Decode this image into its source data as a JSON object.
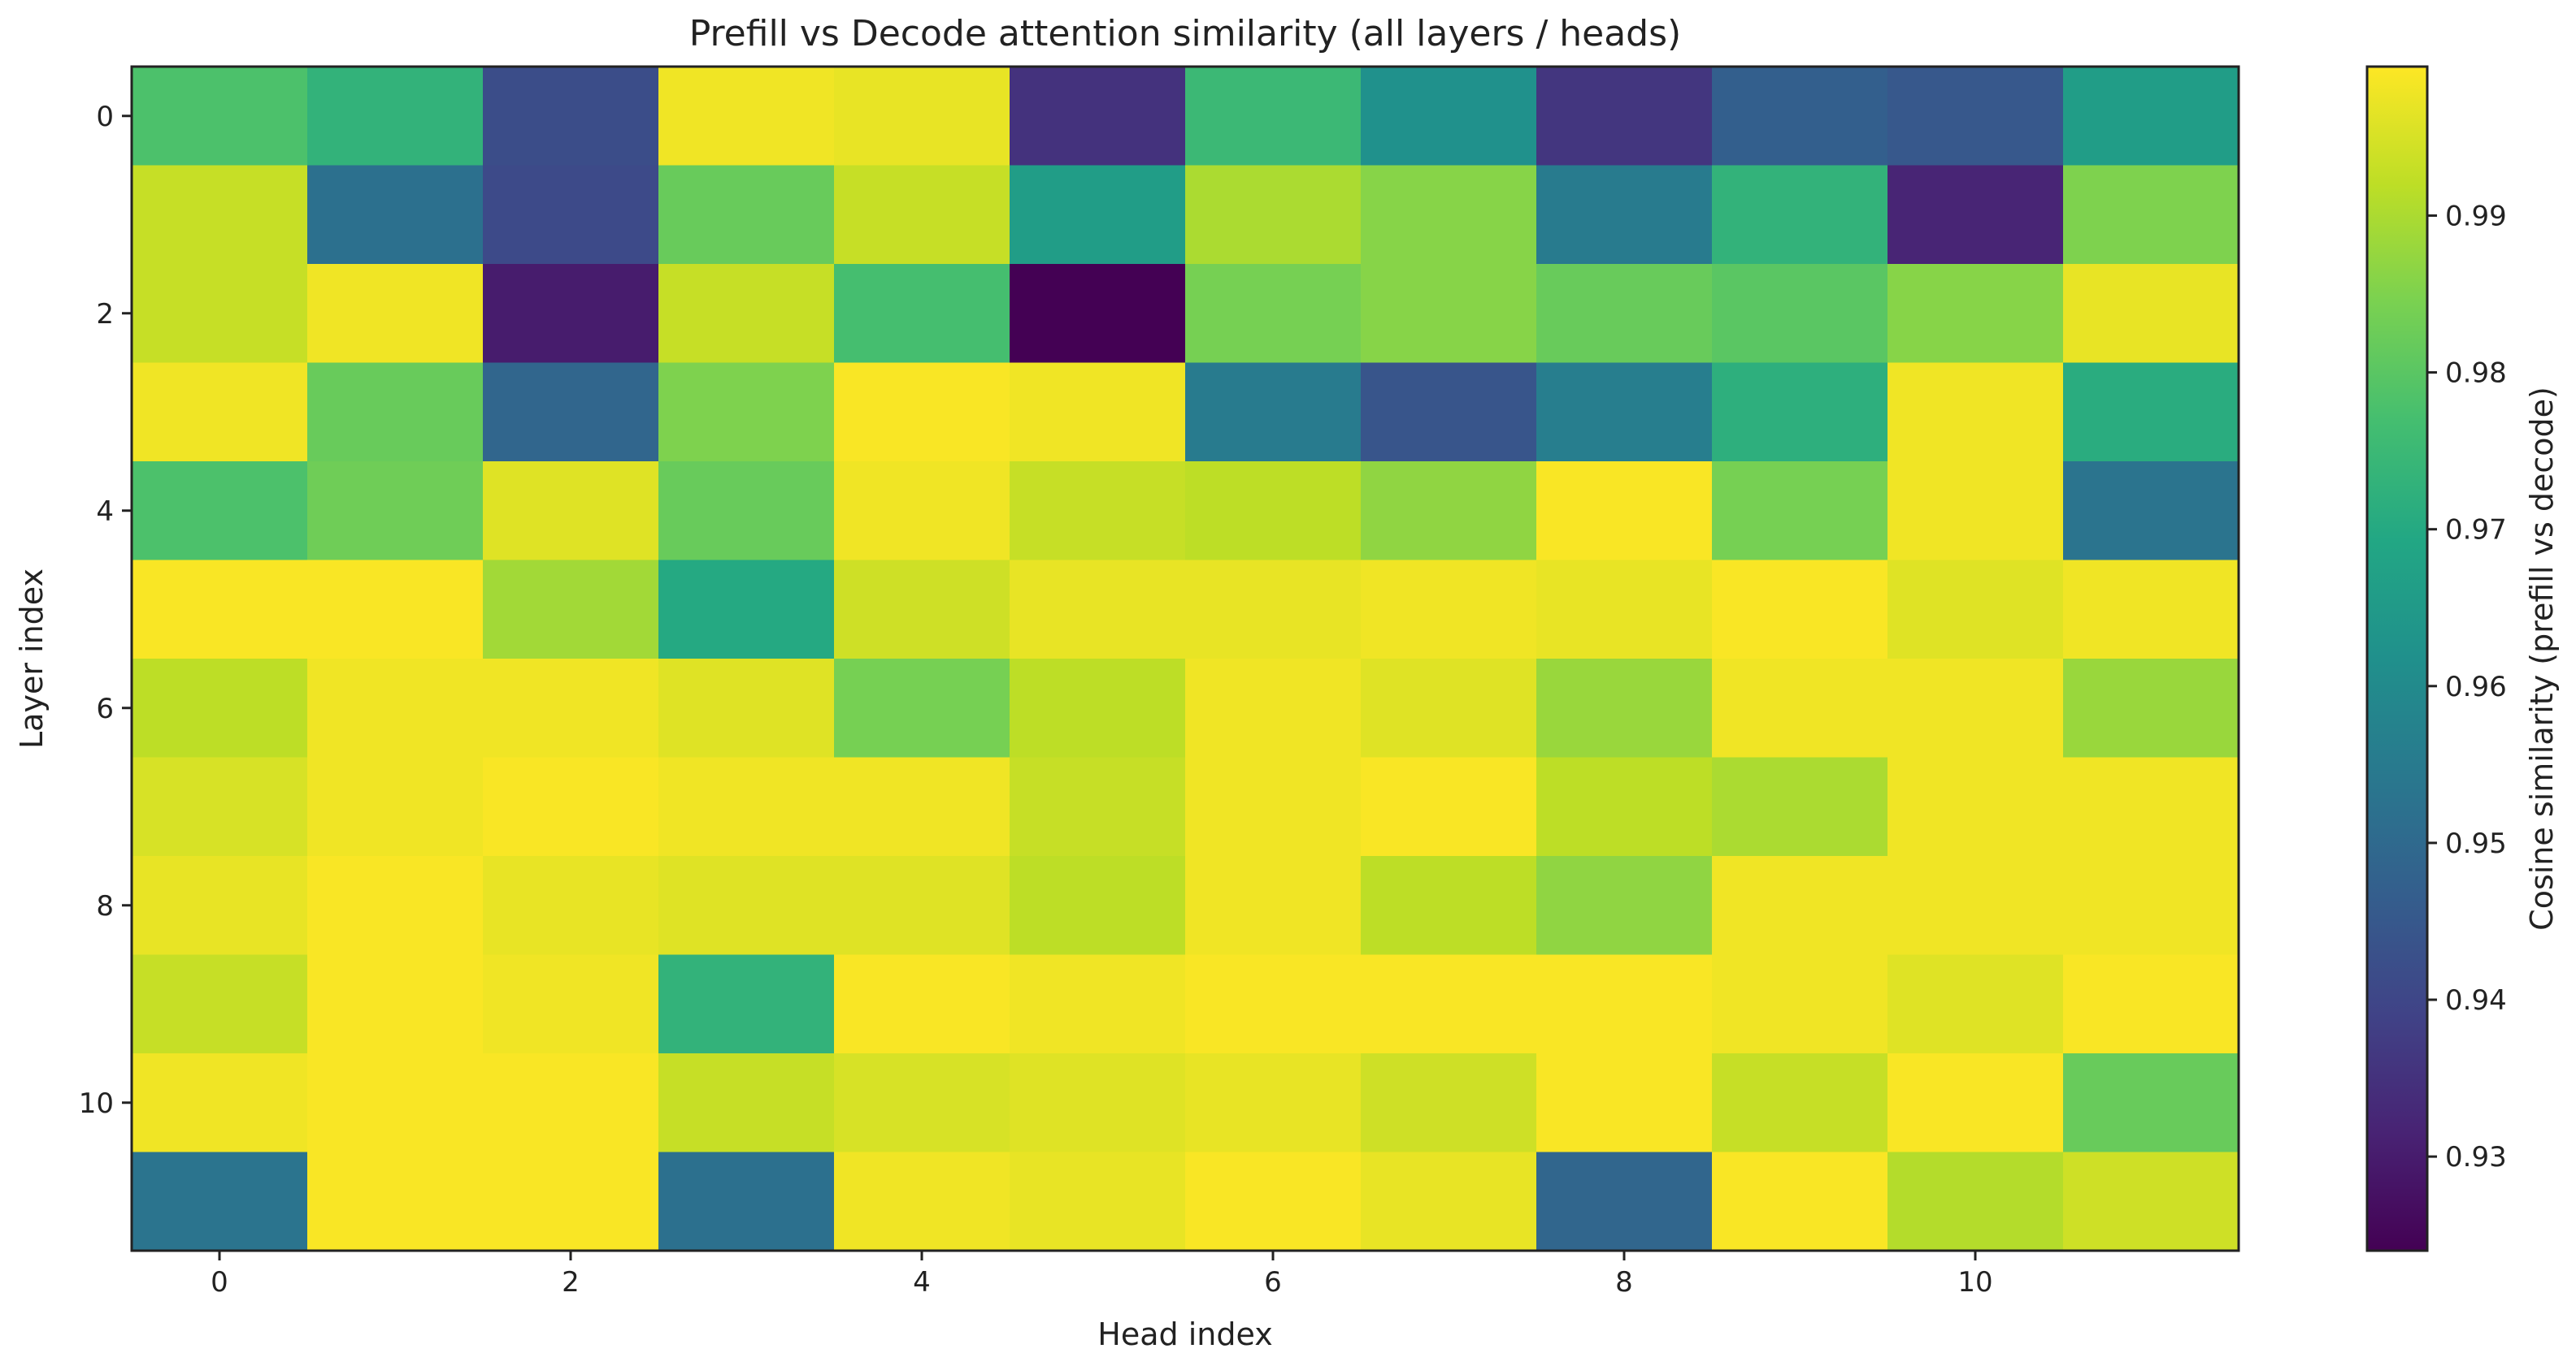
{
  "chart_data": {
    "type": "heatmap",
    "title": "Prefill vs Decode attention similarity (all layers / heads)",
    "xlabel": "Head index",
    "ylabel": "Layer index",
    "colorbar_label": "Cosine similarity (prefill vs decode)",
    "x_categories": [
      0,
      1,
      2,
      3,
      4,
      5,
      6,
      7,
      8,
      9,
      10,
      11
    ],
    "y_categories": [
      0,
      1,
      2,
      3,
      4,
      5,
      6,
      7,
      8,
      9,
      10,
      11
    ],
    "x_tick_labels": [
      "0",
      "2",
      "4",
      "6",
      "8",
      "10"
    ],
    "x_tick_values": [
      0,
      2,
      4,
      6,
      8,
      10
    ],
    "y_tick_labels": [
      "0",
      "2",
      "4",
      "6",
      "8",
      "10"
    ],
    "y_tick_values": [
      0,
      2,
      4,
      6,
      8,
      10
    ],
    "colorbar_range": [
      0.924,
      0.9995
    ],
    "colorbar_ticks": [
      0.93,
      0.94,
      0.95,
      0.96,
      0.97,
      0.98,
      0.99
    ],
    "colorbar_tick_labels": [
      "0.93",
      "0.94",
      "0.95",
      "0.96",
      "0.97",
      "0.98",
      "0.99"
    ],
    "colormap": "viridis",
    "values": [
      [
        0.978,
        0.973,
        0.942,
        0.998,
        0.997,
        0.935,
        0.975,
        0.962,
        0.936,
        0.947,
        0.945,
        0.966
      ],
      [
        0.993,
        0.952,
        0.941,
        0.982,
        0.993,
        0.966,
        0.99,
        0.986,
        0.955,
        0.973,
        0.932,
        0.985
      ],
      [
        0.993,
        0.998,
        0.93,
        0.993,
        0.977,
        0.924,
        0.984,
        0.986,
        0.982,
        0.98,
        0.986,
        0.997
      ],
      [
        0.998,
        0.982,
        0.949,
        0.985,
        0.999,
        0.998,
        0.955,
        0.944,
        0.956,
        0.972,
        0.998,
        0.971
      ],
      [
        0.978,
        0.983,
        0.996,
        0.982,
        0.998,
        0.993,
        0.992,
        0.987,
        0.999,
        0.984,
        0.998,
        0.953
      ],
      [
        0.999,
        0.999,
        0.989,
        0.97,
        0.994,
        0.997,
        0.997,
        0.998,
        0.997,
        0.999,
        0.996,
        0.998
      ],
      [
        0.992,
        0.998,
        0.998,
        0.996,
        0.984,
        0.992,
        0.998,
        0.996,
        0.988,
        0.998,
        0.998,
        0.988
      ],
      [
        0.995,
        0.998,
        0.999,
        0.998,
        0.998,
        0.993,
        0.998,
        0.999,
        0.992,
        0.99,
        0.998,
        0.998
      ],
      [
        0.997,
        0.999,
        0.997,
        0.996,
        0.996,
        0.992,
        0.998,
        0.992,
        0.987,
        0.998,
        0.998,
        0.998
      ],
      [
        0.993,
        0.999,
        0.998,
        0.973,
        0.999,
        0.998,
        0.999,
        0.999,
        0.999,
        0.998,
        0.996,
        0.999
      ],
      [
        0.998,
        0.999,
        0.999,
        0.993,
        0.995,
        0.996,
        0.997,
        0.994,
        0.999,
        0.993,
        0.999,
        0.982
      ],
      [
        0.953,
        0.999,
        0.999,
        0.952,
        0.998,
        0.997,
        0.999,
        0.997,
        0.949,
        0.999,
        0.991,
        0.994
      ]
    ]
  }
}
